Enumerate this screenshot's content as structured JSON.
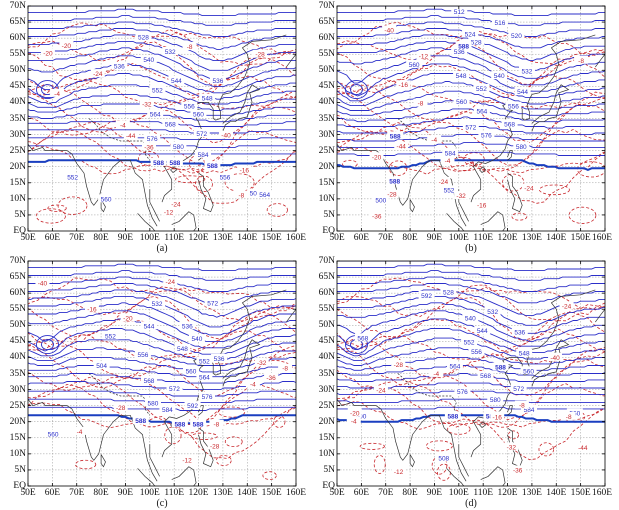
{
  "figure": {
    "latitude_ticks": [
      "70N",
      "65N",
      "60N",
      "55N",
      "50N",
      "45N",
      "40N",
      "35N",
      "30N",
      "25N",
      "20N",
      "15N",
      "10N",
      "5N",
      "EQ"
    ],
    "longitude_ticks": [
      "50E",
      "60E",
      "70E",
      "80E",
      "90E",
      "100E",
      "110E",
      "120E",
      "130E",
      "140E",
      "150E",
      "160E"
    ],
    "colors": {
      "height_contour": "#2b2fc9",
      "ridge_588": "#1a3fc0",
      "temp_contour": "#c8282d",
      "coast": "#333333",
      "grid": "#9a9a9a"
    }
  },
  "panels": [
    {
      "label": "(a)",
      "height_labels": [
        "528",
        "532",
        "536",
        "540",
        "544",
        "548",
        "552",
        "556",
        "560",
        "564",
        "568",
        "572",
        "576",
        "580",
        "584",
        "588",
        "588",
        "588",
        "500",
        "556",
        "560",
        "552",
        "564",
        "536"
      ],
      "temp_labels": [
        "-24",
        "-20",
        "-16",
        "-12",
        "-8",
        "-4",
        "-44",
        "-40",
        "-36",
        "-32",
        "-28",
        "-24",
        "-20",
        "-4",
        "-8"
      ]
    },
    {
      "label": "(b)",
      "height_labels": [
        "512",
        "516",
        "520",
        "524",
        "528",
        "532",
        "536",
        "540",
        "544",
        "548",
        "552",
        "556",
        "560",
        "564",
        "568",
        "572",
        "576",
        "580",
        "584",
        "588",
        "588",
        "588",
        "500",
        "552",
        "560"
      ],
      "temp_labels": [
        "-24",
        "-20",
        "-16",
        "-12",
        "-8",
        "-4",
        "-44",
        "-40",
        "-36",
        "-32",
        "-28",
        "-24",
        "-4",
        "-8",
        "-16"
      ]
    },
    {
      "label": "(c)",
      "height_labels": [
        "532",
        "536",
        "540",
        "544",
        "548",
        "552",
        "556",
        "560",
        "564",
        "568",
        "572",
        "576",
        "580",
        "584",
        "588",
        "588",
        "588",
        "592",
        "504",
        "536",
        "552",
        "560",
        "572"
      ],
      "temp_labels": [
        "-28",
        "-24",
        "-20",
        "-16",
        "-12",
        "-8",
        "-4",
        "-40",
        "-36",
        "-32",
        "-28",
        "-24",
        "-8",
        "-4"
      ]
    },
    {
      "label": "(d)",
      "height_labels": [
        "528",
        "532",
        "536",
        "540",
        "544",
        "548",
        "552",
        "556",
        "560",
        "564",
        "568",
        "572",
        "576",
        "580",
        "584",
        "588",
        "588",
        "588",
        "592",
        "500",
        "508",
        "560",
        "568"
      ],
      "temp_labels": [
        "-24",
        "-20",
        "-16",
        "-12",
        "-8",
        "-4",
        "-44",
        "-40",
        "-36",
        "-32",
        "-28",
        "-24",
        "-8",
        "-4"
      ]
    }
  ]
}
